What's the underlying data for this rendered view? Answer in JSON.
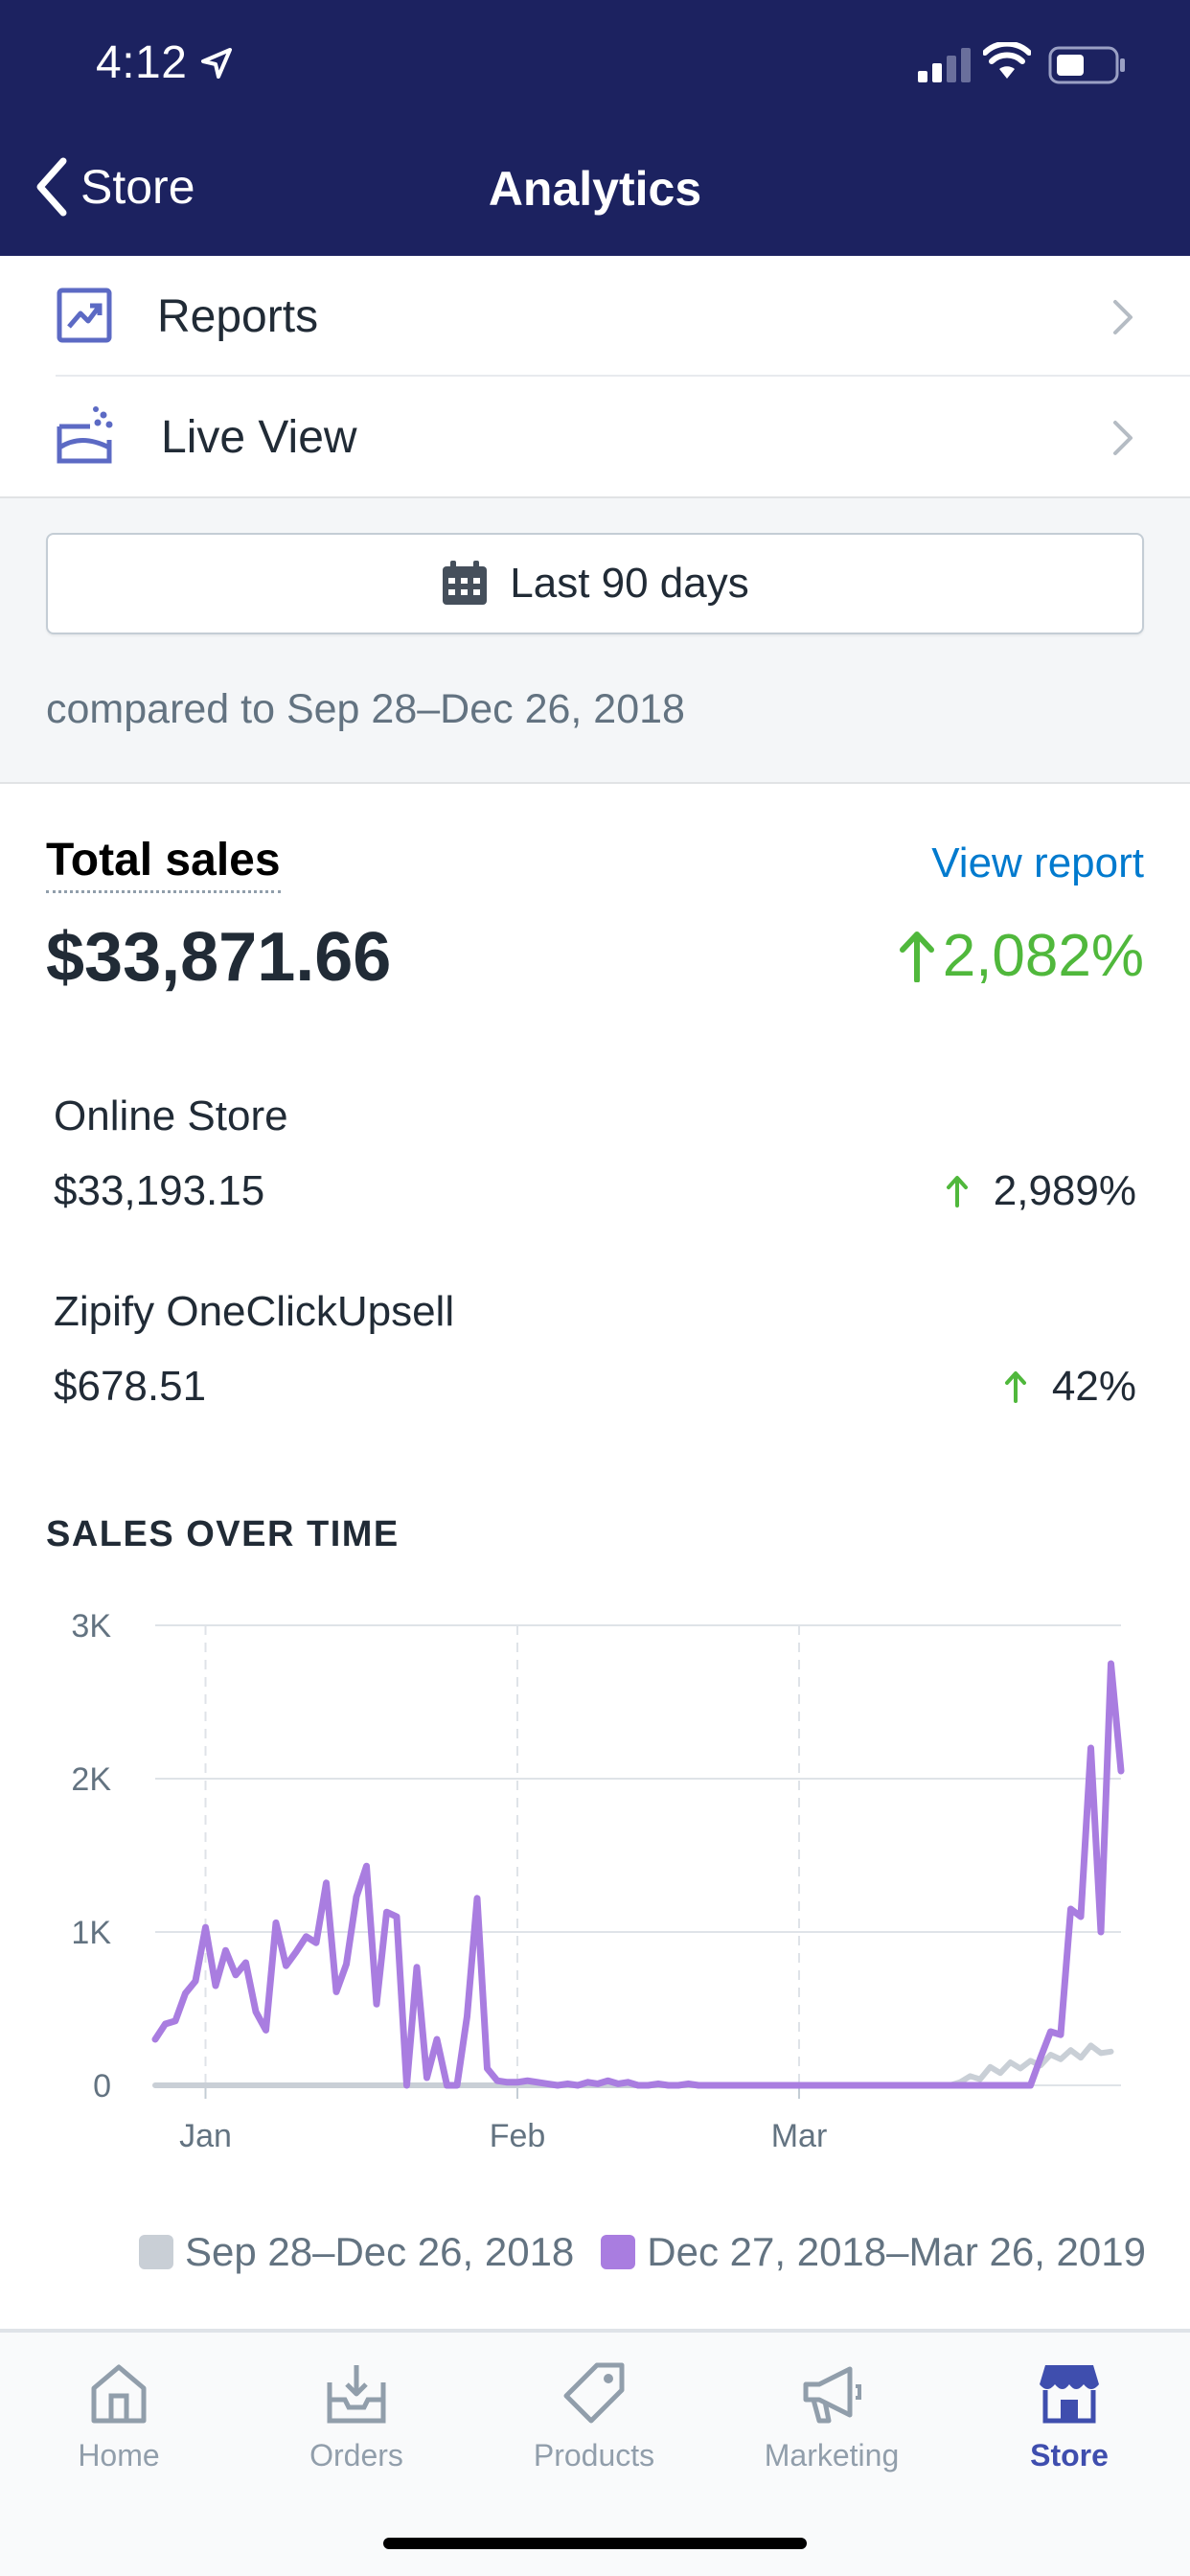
{
  "status_bar": {
    "time": "4:12"
  },
  "nav": {
    "back_label": "Store",
    "title": "Analytics"
  },
  "menu": [
    {
      "label": "Reports",
      "icon": "reports-icon"
    },
    {
      "label": "Live View",
      "icon": "live-view-icon"
    }
  ],
  "filter": {
    "date_range_label": "Last 90 days",
    "compare_text": "compared to Sep 28–Dec 26, 2018"
  },
  "total_sales": {
    "label": "Total sales",
    "view_report": "View report",
    "value": "$33,871.66",
    "change": "2,082%"
  },
  "channels": [
    {
      "name": "Online Store",
      "value": "$33,193.15",
      "change": "2,989%"
    },
    {
      "name": "Zipify OneClickUpsell",
      "value": "$678.51",
      "change": "42%"
    }
  ],
  "colors": {
    "header_bg": "#1c2260",
    "positive": "#50b83c",
    "link": "#007ace",
    "current_series": "#a97de0",
    "previous_series": "#c9cfd6",
    "active_tab": "#3f4eae"
  },
  "chart_data": {
    "type": "line",
    "title": "SALES OVER TIME",
    "y_ticks": [
      "3K",
      "2K",
      "1K",
      "0"
    ],
    "x_ticks": [
      "Jan",
      "Feb",
      "Mar"
    ],
    "ylim": [
      0,
      3000
    ],
    "grid": true,
    "legend_position": "bottom-right",
    "series": [
      {
        "name": "Sep 28–Dec 26, 2018",
        "color": "#c9cfd6",
        "values": [
          0,
          0,
          0,
          0,
          0,
          0,
          0,
          0,
          0,
          0,
          0,
          0,
          0,
          0,
          0,
          0,
          0,
          0,
          0,
          0,
          0,
          0,
          0,
          0,
          0,
          0,
          0,
          0,
          0,
          0,
          0,
          0,
          0,
          0,
          0,
          0,
          0,
          0,
          0,
          0,
          0,
          0,
          0,
          0,
          0,
          0,
          0,
          0,
          0,
          0,
          0,
          0,
          0,
          0,
          0,
          0,
          0,
          0,
          0,
          0,
          0,
          0,
          0,
          0,
          0,
          0,
          0,
          0,
          0,
          0,
          0,
          0,
          0,
          0,
          0,
          0,
          0,
          0,
          0,
          0,
          20,
          60,
          40,
          120,
          80,
          150,
          110,
          160,
          130,
          200,
          170,
          230,
          180,
          260,
          210,
          220
        ]
      },
      {
        "name": "Dec 27, 2018–Mar 26, 2019",
        "color": "#a97de0",
        "values": [
          300,
          400,
          420,
          600,
          680,
          1030,
          650,
          880,
          720,
          800,
          480,
          360,
          1060,
          780,
          870,
          970,
          930,
          1320,
          610,
          790,
          1230,
          1430,
          530,
          1130,
          1100,
          0,
          770,
          50,
          300,
          0,
          0,
          450,
          1220,
          110,
          30,
          20,
          20,
          30,
          20,
          10,
          0,
          10,
          0,
          20,
          10,
          30,
          10,
          20,
          0,
          0,
          10,
          0,
          0,
          10,
          0,
          0,
          0,
          0,
          0,
          0,
          0,
          0,
          0,
          0,
          0,
          0,
          0,
          0,
          0,
          0,
          0,
          0,
          0,
          0,
          0,
          0,
          0,
          0,
          0,
          0,
          0,
          0,
          0,
          0,
          0,
          0,
          0,
          0,
          180,
          350,
          330,
          1150,
          1100,
          2200,
          1000,
          2750,
          2050
        ]
      }
    ],
    "x_tick_indices": [
      5,
      36,
      64
    ]
  },
  "tabs": [
    {
      "label": "Home",
      "icon": "home-icon",
      "active": false
    },
    {
      "label": "Orders",
      "icon": "orders-icon",
      "active": false
    },
    {
      "label": "Products",
      "icon": "products-icon",
      "active": false
    },
    {
      "label": "Marketing",
      "icon": "marketing-icon",
      "active": false
    },
    {
      "label": "Store",
      "icon": "store-icon",
      "active": true
    }
  ]
}
